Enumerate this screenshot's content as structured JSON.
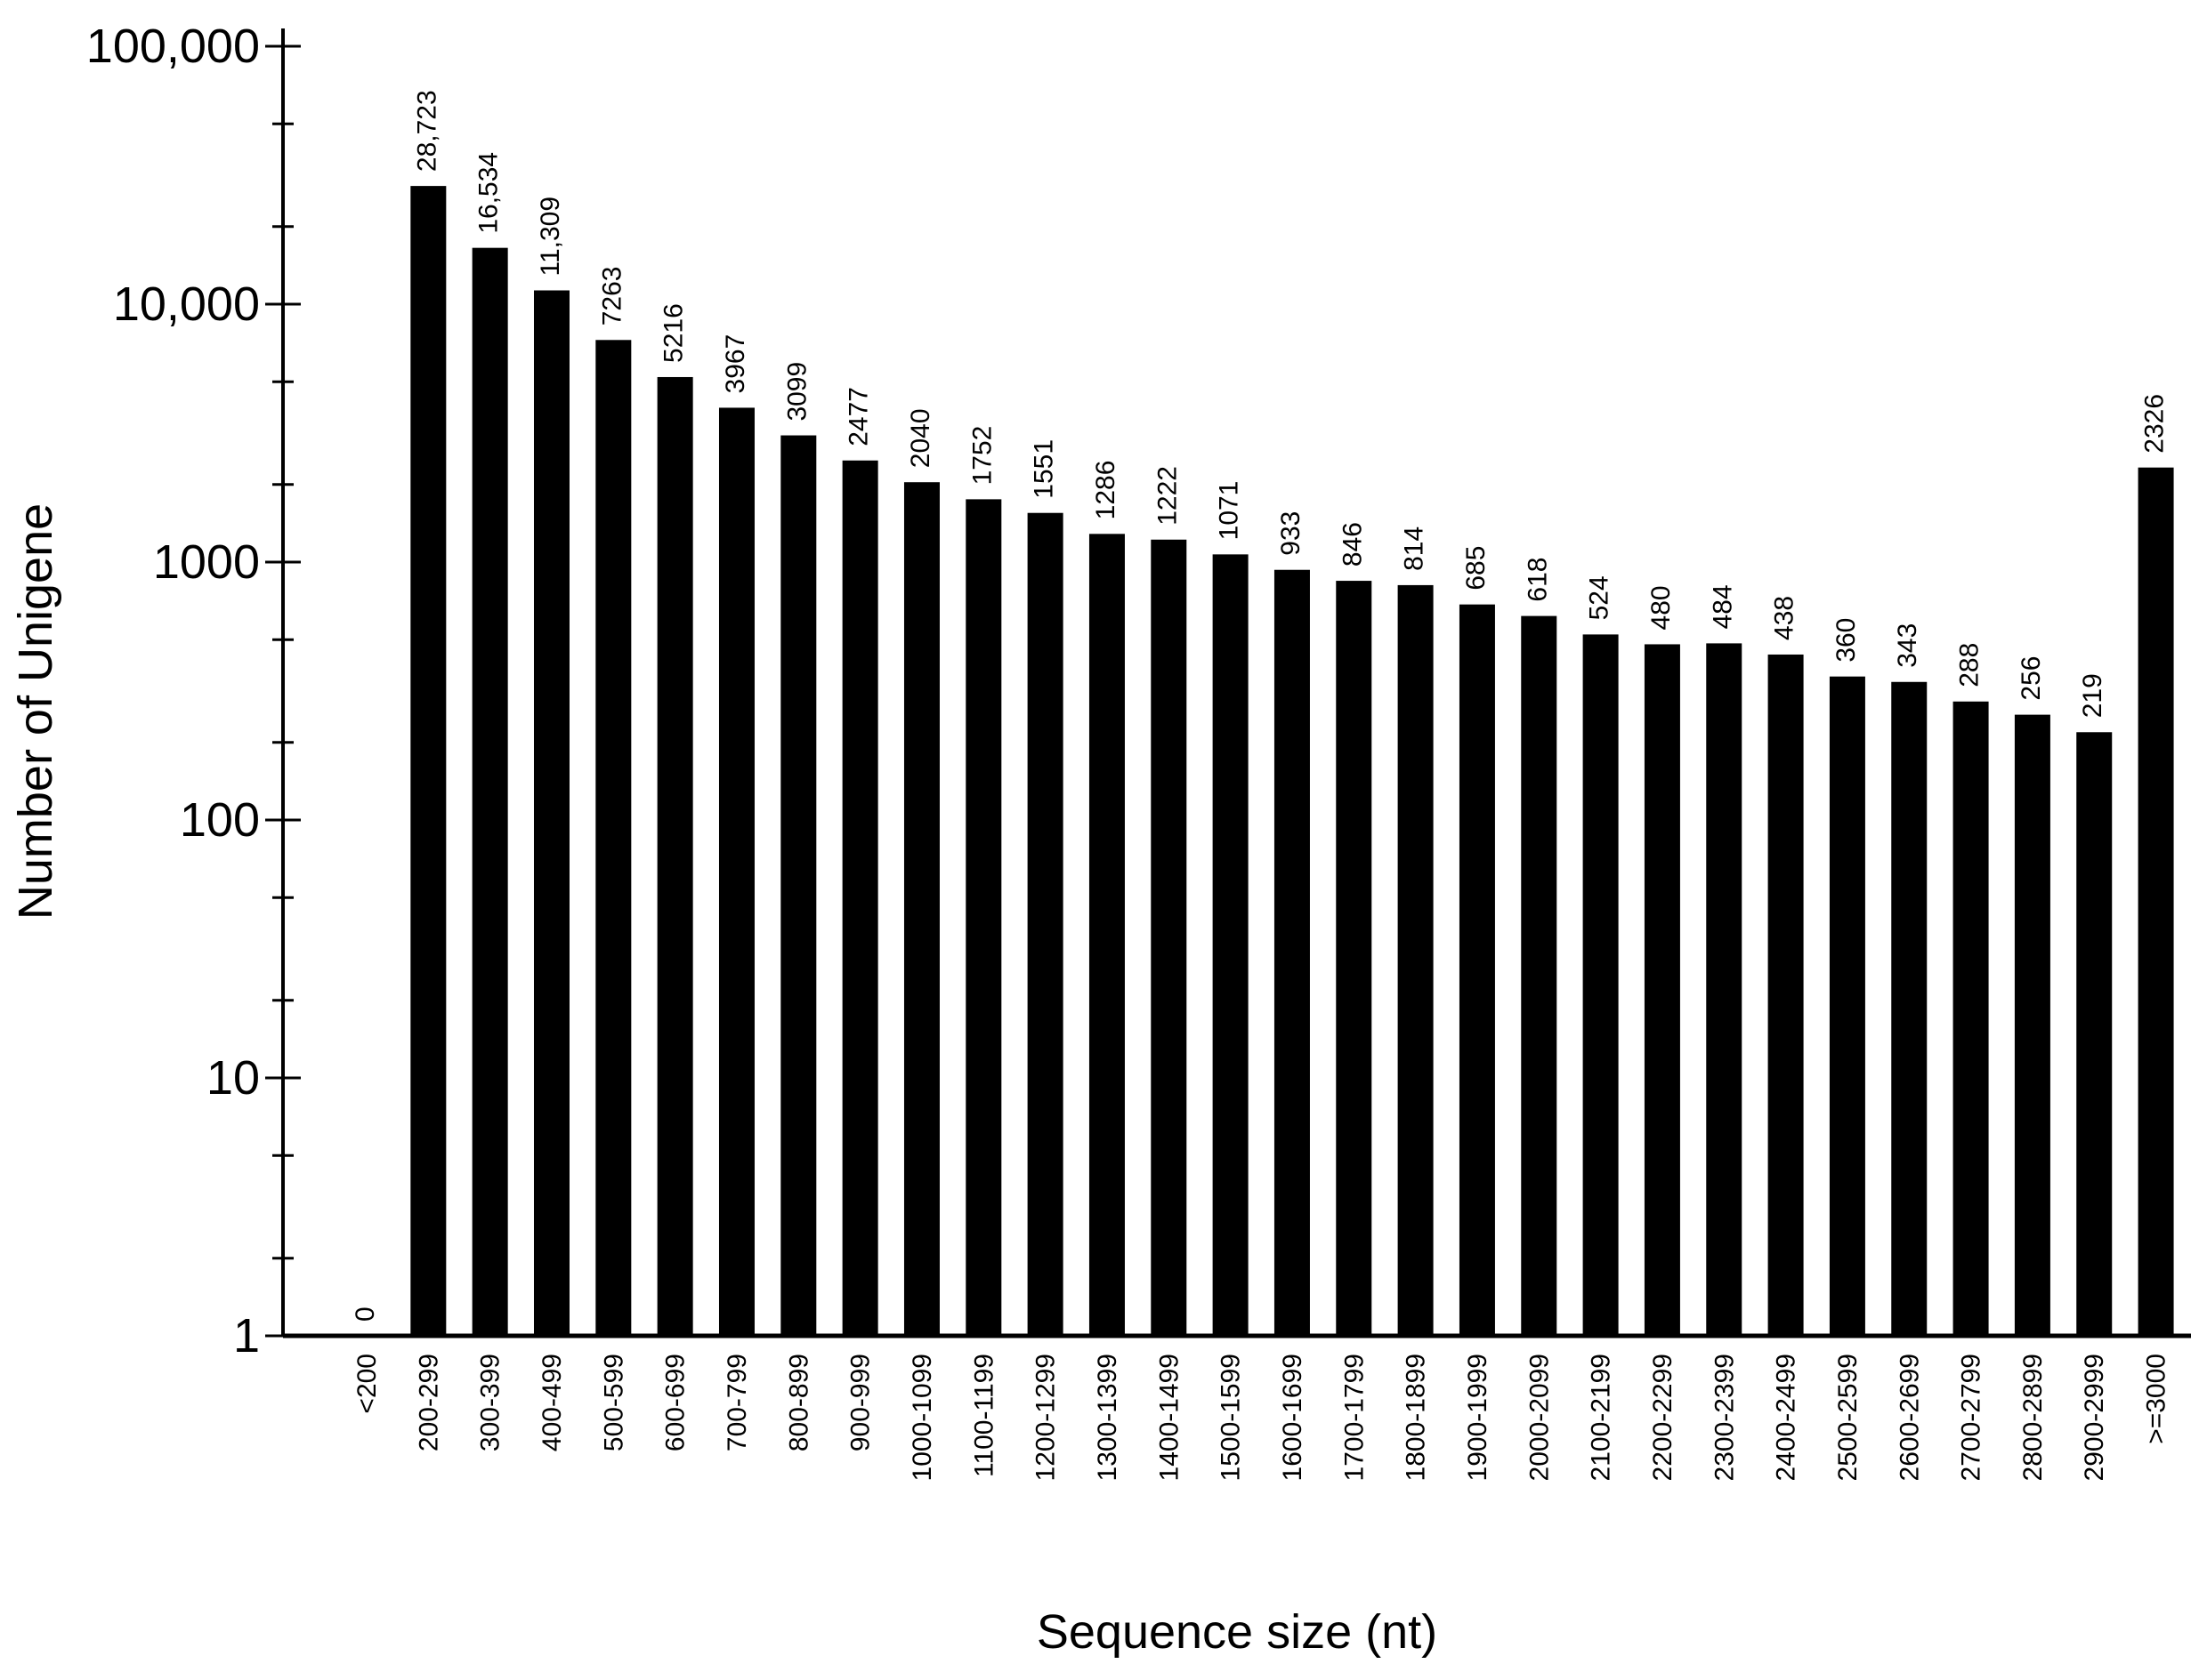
{
  "chart_data": {
    "type": "bar",
    "title": "",
    "xlabel": "Sequence size (nt)",
    "ylabel": "Number of Unigene",
    "yscale": "log",
    "ylim": [
      1,
      100000
    ],
    "grid": false,
    "legend": "none",
    "bar_color": "#000000",
    "yticks": [
      {
        "value": 100000,
        "label": "100,000"
      },
      {
        "value": 10000,
        "label": "10,000"
      },
      {
        "value": 1000,
        "label": "1000"
      },
      {
        "value": 100,
        "label": "100"
      },
      {
        "value": 10,
        "label": "10"
      },
      {
        "value": 1,
        "label": "1"
      }
    ],
    "categories": [
      "<200",
      "200-299",
      "300-399",
      "400-499",
      "500-599",
      "600-699",
      "700-799",
      "800-899",
      "900-999",
      "1000-1099",
      "1100-1199",
      "1200-1299",
      "1300-1399",
      "1400-1499",
      "1500-1599",
      "1600-1699",
      "1700-1799",
      "1800-1899",
      "1900-1999",
      "2000-2099",
      "2100-2199",
      "2200-2299",
      "2300-2399",
      "2400-2499",
      "2500-2599",
      "2600-2699",
      "2700-2799",
      "2800-2899",
      "2900-2999",
      ">=3000"
    ],
    "values": [
      0,
      28723,
      16534,
      11309,
      7263,
      5216,
      3967,
      3099,
      2477,
      2040,
      1752,
      1551,
      1286,
      1222,
      1071,
      933,
      846,
      814,
      685,
      618,
      524,
      480,
      484,
      438,
      360,
      343,
      288,
      256,
      219,
      2326
    ],
    "value_labels": [
      "0",
      "28,723",
      "16,534",
      "11,309",
      "7263",
      "5216",
      "3967",
      "3099",
      "2477",
      "2040",
      "1752",
      "1551",
      "1286",
      "1222",
      "1071",
      "933",
      "846",
      "814",
      "685",
      "618",
      "524",
      "480",
      "484",
      "438",
      "360",
      "343",
      "288",
      "256",
      "219",
      "2326"
    ]
  }
}
